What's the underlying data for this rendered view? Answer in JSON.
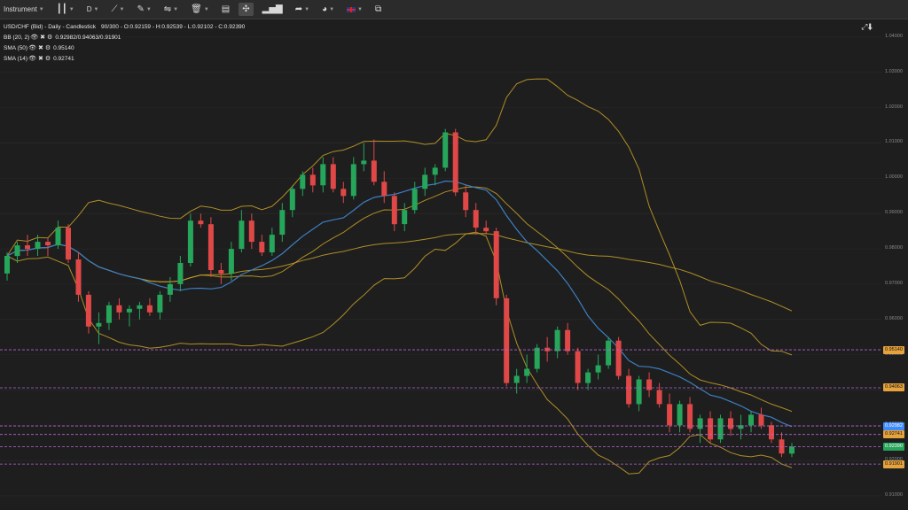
{
  "toolbar": {
    "instrument_label": "Instrument",
    "timeframe_label": "D",
    "flag_icon": "uk-flag-icon",
    "items": [
      {
        "name": "instrument-dropdown",
        "label": "Instrument"
      },
      {
        "name": "timeframe-dropdown",
        "label": "D"
      }
    ]
  },
  "legend": {
    "main": "USD/CHF (Bid) - Daily - Candlestick",
    "ohlc": "90/300 - O:0.92159 - H:0.92539 - L:0.92102 - C:0.92390",
    "bb_name": "BB (20, 2)",
    "bb_val": "0.92982/0.94063/0.91901",
    "sma50_name": "SMA (50)",
    "sma50_val": "0.95140",
    "sma14_name": "SMA (14)",
    "sma14_val": "0.92741"
  },
  "price_tags": [
    {
      "text": "0.95140",
      "color": "#e6a23c"
    },
    {
      "text": "0.94063",
      "color": "#e6a23c"
    },
    {
      "text": "0.92982",
      "color": "#3d8bfd"
    },
    {
      "text": "0.92741",
      "color": "#e6a23c"
    },
    {
      "text": "0.92390",
      "color": "#26a65b"
    },
    {
      "text": "0.91901",
      "color": "#e6a23c"
    }
  ],
  "chart_data": {
    "type": "candlestick",
    "y_ticks": [
      "1.04000",
      "1.03000",
      "1.02000",
      "1.01000",
      "1.00000",
      "0.99000",
      "0.98000",
      "0.97000",
      "0.96000",
      "0.95000",
      "0.94000",
      "0.93000",
      "0.92000",
      "0.91000"
    ],
    "ylim": [
      0.906,
      1.045
    ],
    "colors": {
      "up": "#26a65b",
      "down": "#e04848",
      "bb": "#c9a227",
      "sma50": "#c9a227",
      "sma14": "#3d7fc1",
      "hline": "#b764d6"
    },
    "hlines": [
      0.9514,
      0.94063,
      0.92982,
      0.92741,
      0.9239,
      0.91901
    ],
    "candles": [
      [
        0.973,
        0.979,
        0.971,
        0.978
      ],
      [
        0.978,
        0.982,
        0.976,
        0.981
      ],
      [
        0.981,
        0.984,
        0.978,
        0.98
      ],
      [
        0.98,
        0.984,
        0.978,
        0.982
      ],
      [
        0.982,
        0.983,
        0.978,
        0.981
      ],
      [
        0.981,
        0.988,
        0.98,
        0.986
      ],
      [
        0.986,
        0.987,
        0.976,
        0.977
      ],
      [
        0.977,
        0.979,
        0.965,
        0.967
      ],
      [
        0.967,
        0.968,
        0.956,
        0.958
      ],
      [
        0.958,
        0.962,
        0.953,
        0.959
      ],
      [
        0.959,
        0.965,
        0.957,
        0.964
      ],
      [
        0.964,
        0.966,
        0.96,
        0.962
      ],
      [
        0.962,
        0.964,
        0.958,
        0.963
      ],
      [
        0.963,
        0.965,
        0.96,
        0.964
      ],
      [
        0.964,
        0.966,
        0.961,
        0.962
      ],
      [
        0.962,
        0.968,
        0.96,
        0.967
      ],
      [
        0.967,
        0.972,
        0.965,
        0.97
      ],
      [
        0.97,
        0.978,
        0.968,
        0.976
      ],
      [
        0.976,
        0.99,
        0.975,
        0.988
      ],
      [
        0.988,
        0.99,
        0.986,
        0.987
      ],
      [
        0.987,
        0.989,
        0.972,
        0.974
      ],
      [
        0.974,
        0.976,
        0.97,
        0.973
      ],
      [
        0.973,
        0.982,
        0.971,
        0.98
      ],
      [
        0.98,
        0.991,
        0.979,
        0.988
      ],
      [
        0.988,
        0.99,
        0.98,
        0.982
      ],
      [
        0.982,
        0.984,
        0.978,
        0.979
      ],
      [
        0.979,
        0.986,
        0.978,
        0.984
      ],
      [
        0.984,
        0.993,
        0.982,
        0.991
      ],
      [
        0.991,
        0.998,
        0.989,
        0.997
      ],
      [
        0.997,
        1.002,
        0.995,
        1.001
      ],
      [
        1.001,
        1.003,
        0.996,
        0.998
      ],
      [
        0.998,
        1.006,
        0.996,
        1.004
      ],
      [
        1.004,
        1.006,
        0.996,
        0.997
      ],
      [
        0.997,
        0.999,
        0.993,
        0.995
      ],
      [
        0.995,
        1.006,
        0.994,
        1.004
      ],
      [
        1.004,
        1.01,
        1.002,
        1.005
      ],
      [
        1.005,
        1.011,
        0.998,
        0.999
      ],
      [
        0.999,
        1.002,
        0.993,
        0.995
      ],
      [
        0.995,
        0.996,
        0.985,
        0.987
      ],
      [
        0.987,
        0.993,
        0.985,
        0.991
      ],
      [
        0.991,
        0.999,
        0.99,
        0.997
      ],
      [
        0.997,
        1.003,
        0.995,
        1.001
      ],
      [
        1.001,
        1.004,
        0.998,
        1.003
      ],
      [
        1.003,
        1.014,
        1.002,
        1.013
      ],
      [
        1.013,
        1.014,
        0.995,
        0.996
      ],
      [
        0.996,
        0.998,
        0.989,
        0.991
      ],
      [
        0.991,
        0.993,
        0.984,
        0.986
      ],
      [
        0.986,
        0.988,
        0.984,
        0.985
      ],
      [
        0.985,
        0.986,
        0.964,
        0.966
      ],
      [
        0.966,
        0.967,
        0.941,
        0.942
      ],
      [
        0.942,
        0.946,
        0.939,
        0.944
      ],
      [
        0.944,
        0.95,
        0.942,
        0.946
      ],
      [
        0.946,
        0.953,
        0.945,
        0.952
      ],
      [
        0.952,
        0.955,
        0.948,
        0.951
      ],
      [
        0.951,
        0.958,
        0.949,
        0.957
      ],
      [
        0.957,
        0.959,
        0.95,
        0.951
      ],
      [
        0.951,
        0.952,
        0.94,
        0.942
      ],
      [
        0.942,
        0.946,
        0.94,
        0.945
      ],
      [
        0.945,
        0.95,
        0.943,
        0.947
      ],
      [
        0.947,
        0.955,
        0.946,
        0.954
      ],
      [
        0.954,
        0.955,
        0.943,
        0.944
      ],
      [
        0.944,
        0.946,
        0.935,
        0.936
      ],
      [
        0.936,
        0.944,
        0.934,
        0.943
      ],
      [
        0.943,
        0.945,
        0.938,
        0.94
      ],
      [
        0.94,
        0.942,
        0.935,
        0.936
      ],
      [
        0.936,
        0.939,
        0.928,
        0.93
      ],
      [
        0.93,
        0.937,
        0.928,
        0.936
      ],
      [
        0.936,
        0.938,
        0.928,
        0.929
      ],
      [
        0.929,
        0.933,
        0.925,
        0.932
      ],
      [
        0.932,
        0.934,
        0.925,
        0.926
      ],
      [
        0.926,
        0.933,
        0.925,
        0.932
      ],
      [
        0.932,
        0.934,
        0.927,
        0.929
      ],
      [
        0.929,
        0.933,
        0.926,
        0.93
      ],
      [
        0.93,
        0.934,
        0.928,
        0.933
      ],
      [
        0.933,
        0.935,
        0.929,
        0.93
      ],
      [
        0.93,
        0.931,
        0.925,
        0.926
      ],
      [
        0.926,
        0.928,
        0.921,
        0.922
      ],
      [
        0.922,
        0.925,
        0.921,
        0.924
      ]
    ]
  }
}
